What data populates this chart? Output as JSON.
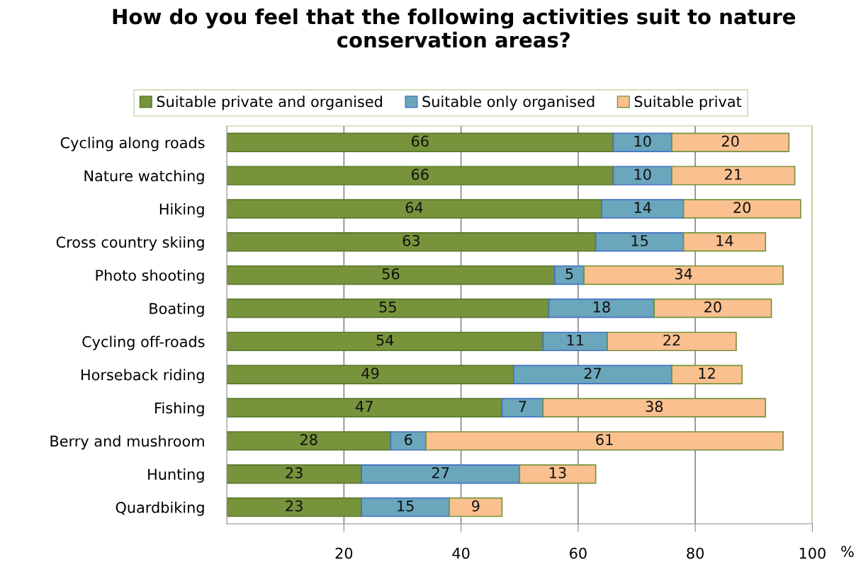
{
  "chart_data": {
    "type": "bar",
    "orientation": "horizontal",
    "stacked": true,
    "title": "How do you feel that the following activities suit to nature conservation areas?",
    "xlabel": "%",
    "categories": [
      "Cycling along roads",
      "Nature watching",
      "Hiking",
      "Cross country skiing",
      "Photo shooting",
      "Boating",
      "Cycling off-roads",
      "Horseback riding",
      "Fishing",
      "Berry and mushroom",
      "Hunting",
      "Quardbiking"
    ],
    "series": [
      {
        "name": "Suitable private and organised",
        "color": "#77933c",
        "values": [
          66,
          66,
          64,
          63,
          56,
          55,
          54,
          49,
          47,
          28,
          23,
          23
        ]
      },
      {
        "name": "Suitable only organised",
        "color": "#6aa6bc",
        "values": [
          10,
          10,
          14,
          15,
          5,
          18,
          11,
          27,
          7,
          6,
          27,
          15
        ]
      },
      {
        "name": "Suitable privat",
        "color": "#fac090",
        "values": [
          20,
          21,
          20,
          14,
          34,
          20,
          22,
          12,
          38,
          61,
          13,
          9
        ]
      }
    ],
    "xlim": [
      0,
      100
    ],
    "xticks": [
      20,
      40,
      60,
      80,
      100
    ],
    "grid": "x",
    "legend": "top",
    "data_labels": true
  }
}
